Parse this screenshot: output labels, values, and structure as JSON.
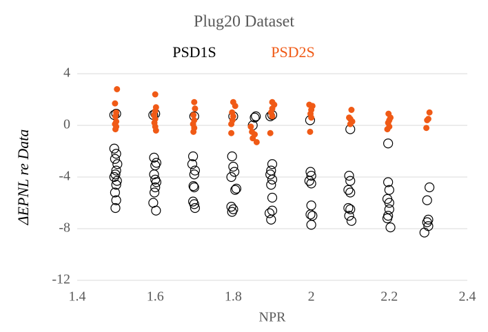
{
  "chart_data": {
    "type": "scatter",
    "title": "Plug20 Dataset",
    "xlabel": "NPR",
    "ylabel": "ΔEPNL re Data",
    "xlim": [
      1.4,
      2.4
    ],
    "xticks": [
      1.4,
      1.6,
      1.8,
      2,
      2.2,
      2.4
    ],
    "ylim": [
      -12,
      4
    ],
    "yticks": [
      4,
      0,
      -4,
      -8,
      -12
    ],
    "grid": true,
    "series": [
      {
        "name": "PSD1S",
        "color": "#000000",
        "marker": "open",
        "x": [
          1.495,
          1.5,
          1.495,
          1.5,
          1.497,
          1.503,
          1.5,
          1.498,
          1.495,
          1.502,
          1.5,
          1.497,
          1.5,
          1.498,
          1.595,
          1.6,
          1.597,
          1.603,
          1.6,
          1.597,
          1.6,
          1.603,
          1.6,
          1.598,
          1.595,
          1.602,
          1.7,
          1.697,
          1.695,
          1.702,
          1.7,
          1.698,
          1.7,
          1.697,
          1.7,
          1.702,
          1.8,
          1.797,
          1.8,
          1.803,
          1.795,
          1.808,
          1.805,
          1.795,
          1.8,
          1.797,
          1.855,
          1.85,
          1.858,
          1.895,
          1.9,
          1.9,
          1.897,
          1.895,
          1.9,
          1.897,
          1.9,
          1.9,
          1.893,
          1.897,
          1.997,
          1.998,
          2.0,
          1.995,
          2.0,
          2.0,
          1.998,
          2.003,
          2.0,
          2.1,
          2.097,
          2.1,
          2.095,
          2.1,
          2.095,
          2.1,
          2.097,
          2.103,
          2.197,
          2.197,
          2.2,
          2.195,
          2.2,
          2.2,
          2.197,
          2.195,
          2.203,
          2.303,
          2.297,
          2.3,
          2.297,
          2.3,
          2.29
        ],
        "values": [
          0.8,
          0.9,
          -1.8,
          -2.2,
          -2.6,
          -3.0,
          -3.5,
          -3.8,
          -4.0,
          -4.3,
          -4.6,
          -5.2,
          -5.8,
          -6.4,
          0.8,
          0.9,
          -2.5,
          -2.9,
          -3.1,
          -3.8,
          -4.2,
          -4.4,
          -4.8,
          -5.2,
          -6.0,
          -6.6,
          0.7,
          -2.4,
          -3.0,
          -3.5,
          -3.8,
          -4.7,
          -4.8,
          -5.9,
          -6.1,
          -6.4,
          0.7,
          -2.4,
          -3.2,
          -3.6,
          -4.0,
          -4.9,
          -5.0,
          -6.3,
          -6.5,
          -6.7,
          0.6,
          0.0,
          0.7,
          0.7,
          0.8,
          -3.0,
          -3.5,
          -3.8,
          -4.2,
          -4.6,
          -5.6,
          -6.6,
          -6.8,
          -7.3,
          0.4,
          -3.6,
          -3.9,
          -4.3,
          -4.5,
          -6.2,
          -6.9,
          -7.0,
          -7.7,
          -0.3,
          -3.9,
          -4.3,
          -5.0,
          -5.2,
          -6.4,
          -6.5,
          -7.0,
          -7.4,
          -1.4,
          -4.4,
          -5.0,
          -5.7,
          -6.0,
          -6.5,
          -7.0,
          -7.2,
          -7.9,
          -4.8,
          -5.8,
          -7.3,
          -7.5,
          -7.8,
          -8.3
        ]
      },
      {
        "name": "PSD2S",
        "color": "#f05a16",
        "marker": "filled",
        "x": [
          1.502,
          1.497,
          1.5,
          1.498,
          1.5,
          1.497,
          1.5,
          1.498,
          1.6,
          1.602,
          1.6,
          1.597,
          1.6,
          1.598,
          1.6,
          1.602,
          1.7,
          1.702,
          1.698,
          1.7,
          1.697,
          1.7,
          1.698,
          1.8,
          1.805,
          1.797,
          1.8,
          1.798,
          1.795,
          1.795,
          1.845,
          1.855,
          1.85,
          1.86,
          1.848,
          1.9,
          1.905,
          1.9,
          1.897,
          1.9,
          1.895,
          1.995,
          2.003,
          2.0,
          1.998,
          2.0,
          1.997,
          2.103,
          2.097,
          2.1,
          2.105,
          2.1,
          2.198,
          2.203,
          2.2,
          2.197,
          2.2,
          2.195,
          2.303,
          2.3,
          2.297,
          2.295
        ],
        "values": [
          2.8,
          1.7,
          1.0,
          0.7,
          0.3,
          0.1,
          -0.1,
          -0.3,
          2.4,
          1.4,
          1.1,
          0.8,
          0.5,
          0.2,
          -0.1,
          -0.4,
          1.8,
          1.3,
          0.8,
          0.4,
          0.1,
          -0.2,
          -0.5,
          1.8,
          1.5,
          1.0,
          0.7,
          0.4,
          0.1,
          -0.6,
          -0.1,
          -0.7,
          -1.0,
          -1.3,
          -0.5,
          1.8,
          1.6,
          1.3,
          1.0,
          0.7,
          -0.6,
          1.6,
          1.5,
          1.2,
          0.9,
          0.6,
          -0.5,
          1.2,
          0.6,
          0.5,
          0.3,
          0.1,
          0.9,
          0.6,
          0.4,
          0.2,
          -0.1,
          -0.3,
          1.0,
          0.5,
          0.4,
          -0.2
        ]
      }
    ]
  }
}
